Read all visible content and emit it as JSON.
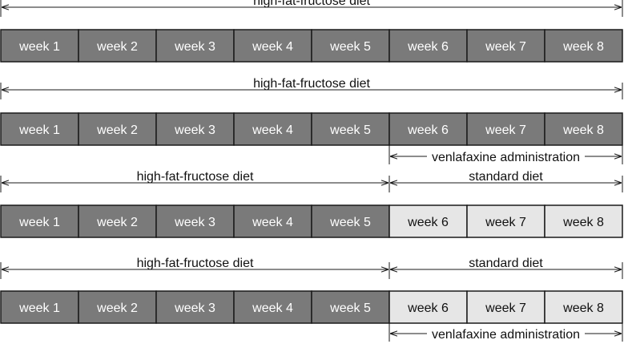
{
  "colors": {
    "dark_cell": "#7a7a7a",
    "light_cell": "#e6e6e6",
    "border": "#1a1a1a",
    "dark_text": "#ffffff",
    "light_text": "#111111"
  },
  "rows": [
    {
      "weeks": [
        "week 1",
        "week 2",
        "week 3",
        "week 4",
        "week 5",
        "week 6",
        "week 7",
        "week 8"
      ],
      "shading": [
        "dark",
        "dark",
        "dark",
        "dark",
        "dark",
        "dark",
        "dark",
        "dark"
      ],
      "spans_above": [
        {
          "label": "high-fat-fructose diet",
          "from_week": 1,
          "to_week": 8
        }
      ],
      "spans_below": []
    },
    {
      "weeks": [
        "week 1",
        "week 2",
        "week 3",
        "week 4",
        "week 5",
        "week 6",
        "week 7",
        "week 8"
      ],
      "shading": [
        "dark",
        "dark",
        "dark",
        "dark",
        "dark",
        "dark",
        "dark",
        "dark"
      ],
      "spans_above": [
        {
          "label": "high-fat-fructose diet",
          "from_week": 1,
          "to_week": 8
        }
      ],
      "spans_below": [
        {
          "label": "venlafaxine administration",
          "from_week": 6,
          "to_week": 8
        }
      ]
    },
    {
      "weeks": [
        "week 1",
        "week 2",
        "week 3",
        "week 4",
        "week 5",
        "week 6",
        "week 7",
        "week 8"
      ],
      "shading": [
        "dark",
        "dark",
        "dark",
        "dark",
        "dark",
        "light",
        "light",
        "light"
      ],
      "spans_above": [
        {
          "label": "high-fat-fructose diet",
          "from_week": 1,
          "to_week": 5
        },
        {
          "label": "standard diet",
          "from_week": 6,
          "to_week": 8
        }
      ],
      "spans_below": []
    },
    {
      "weeks": [
        "week 1",
        "week 2",
        "week 3",
        "week 4",
        "week 5",
        "week 6",
        "week 7",
        "week 8"
      ],
      "shading": [
        "dark",
        "dark",
        "dark",
        "dark",
        "dark",
        "light",
        "light",
        "light"
      ],
      "spans_above": [
        {
          "label": "high-fat-fructose diet",
          "from_week": 1,
          "to_week": 5
        },
        {
          "label": "standard diet",
          "from_week": 6,
          "to_week": 8
        }
      ],
      "spans_below": [
        {
          "label": "venlafaxine administration",
          "from_week": 6,
          "to_week": 8
        }
      ]
    }
  ]
}
